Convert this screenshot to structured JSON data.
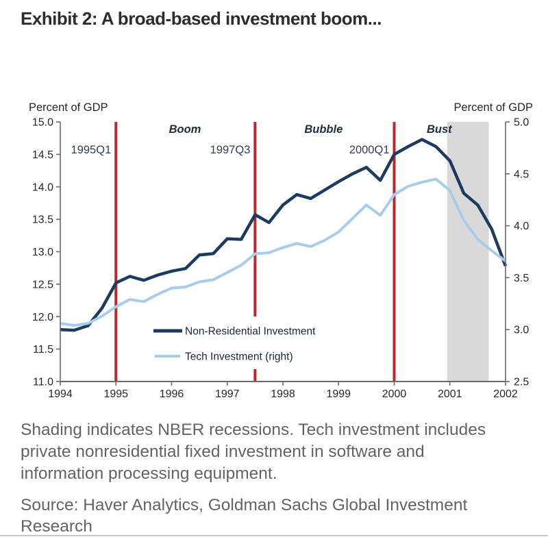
{
  "title": "Exhibit 2: A broad-based investment boom...",
  "footnote": "Shading indicates NBER recessions. Tech investment includes\nprivate nonresidential fixed investment in software and\ninformation processing equipment.",
  "source": "Source: Haver Analytics, Goldman Sachs Global Investment\nResearch",
  "colors": {
    "navy": "#1c3b5e",
    "light_blue": "#a9cce9",
    "event_line": "#bf272b",
    "shading": "#d9d9d9",
    "axis": "#6a6a6a",
    "tick_text": "#262626",
    "event_label": "#333d55",
    "phase_label": "#252c40",
    "legend_text": "#1e2435",
    "legend_bg": "#ffffff",
    "title_text": "#2d2d2d",
    "note_text": "#636363"
  },
  "chart_data": {
    "type": "line",
    "title": "",
    "x": [
      1994,
      1994.25,
      1994.5,
      1994.75,
      1995,
      1995.25,
      1995.5,
      1995.75,
      1996,
      1996.25,
      1996.5,
      1996.75,
      1997,
      1997.25,
      1997.5,
      1997.75,
      1998,
      1998.25,
      1998.5,
      1998.75,
      1999,
      1999.25,
      1999.5,
      1999.75,
      2000,
      2000.25,
      2000.5,
      2000.75,
      2001,
      2001.25,
      2001.5,
      2001.75,
      2002
    ],
    "series": [
      {
        "name": "Non-Residential Investment",
        "axis": "left",
        "color": "#1c3b5e",
        "line_width": 4.5,
        "values": [
          11.8,
          11.79,
          11.86,
          12.13,
          12.52,
          12.62,
          12.56,
          12.64,
          12.7,
          12.74,
          12.95,
          12.97,
          13.2,
          13.19,
          13.57,
          13.45,
          13.72,
          13.88,
          13.82,
          13.95,
          14.08,
          14.2,
          14.3,
          14.1,
          14.5,
          14.62,
          14.73,
          14.62,
          14.4,
          13.9,
          13.72,
          13.35,
          12.78
        ]
      },
      {
        "name": "Tech Investment (right)",
        "axis": "right",
        "color": "#a9cce9",
        "line_width": 4,
        "values": [
          3.06,
          3.04,
          3.06,
          3.13,
          3.22,
          3.29,
          3.27,
          3.34,
          3.4,
          3.41,
          3.46,
          3.48,
          3.55,
          3.62,
          3.73,
          3.74,
          3.79,
          3.83,
          3.8,
          3.86,
          3.94,
          4.07,
          4.2,
          4.1,
          4.3,
          4.38,
          4.42,
          4.45,
          4.34,
          4.05,
          3.87,
          3.76,
          3.66
        ]
      }
    ],
    "left_axis": {
      "label": "Percent of GDP",
      "min": 11.0,
      "max": 15.0,
      "ticks": [
        "15.0",
        "14.5",
        "14.0",
        "13.5",
        "13.0",
        "12.5",
        "12.0",
        "11.5",
        "11.0"
      ]
    },
    "right_axis": {
      "label": "Percent of GDP",
      "min": 2.5,
      "max": 5.0,
      "ticks": [
        "5.0",
        "4.5",
        "4.0",
        "3.5",
        "3.0",
        "2.5"
      ]
    },
    "x_axis": {
      "min": 1994,
      "max": 2002,
      "ticks": [
        "1994",
        "1995",
        "1996",
        "1997",
        "1998",
        "1999",
        "2000",
        "2001",
        "2002"
      ]
    },
    "event_lines": [
      {
        "t": 1995.0,
        "label": "1995Q1"
      },
      {
        "t": 1997.5,
        "label": "1997Q3"
      },
      {
        "t": 2000.0,
        "label": "2000Q1"
      }
    ],
    "phase_labels": [
      {
        "t": 1996.24,
        "label": "Boom"
      },
      {
        "t": 1998.73,
        "label": "Bubble"
      },
      {
        "t": 2000.81,
        "label": "Bust"
      }
    ],
    "recession_shading": [
      {
        "from": 2000.95,
        "to": 2001.7
      }
    ],
    "legend_position": "inside-bottom-left",
    "grid": false
  }
}
